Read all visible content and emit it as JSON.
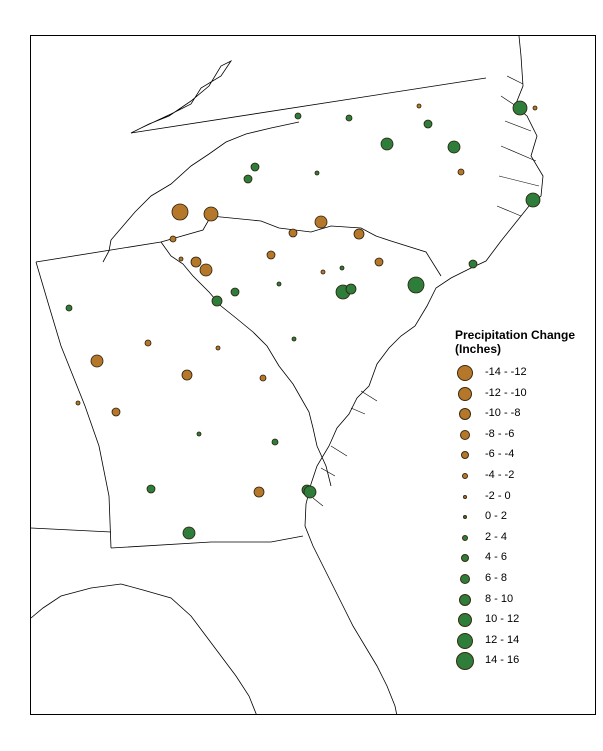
{
  "legend": {
    "title_line1": "Precipitation Change",
    "title_line2": "(Inches)",
    "classes": [
      {
        "label": "-14 - -12",
        "color": "#b5782a",
        "size": 16
      },
      {
        "label": "-12 - -10",
        "color": "#b5782a",
        "size": 14
      },
      {
        "label": "-10 - -8",
        "color": "#b5782a",
        "size": 12
      },
      {
        "label": "-8 - -6",
        "color": "#b5782a",
        "size": 10
      },
      {
        "label": "-6 - -4",
        "color": "#b5782a",
        "size": 8
      },
      {
        "label": "-4 - -2",
        "color": "#b5782a",
        "size": 6
      },
      {
        "label": "-2 - 0",
        "color": "#b5782a",
        "size": 4
      },
      {
        "label": "0 - 2",
        "color": "#2e7d3a",
        "size": 4
      },
      {
        "label": "2 - 4",
        "color": "#2e7d3a",
        "size": 6
      },
      {
        "label": "4 - 6",
        "color": "#2e7d3a",
        "size": 8
      },
      {
        "label": "6 - 8",
        "color": "#2e7d3a",
        "size": 10
      },
      {
        "label": "8 - 10",
        "color": "#2e7d3a",
        "size": 12
      },
      {
        "label": "10 - 12",
        "color": "#2e7d3a",
        "size": 14
      },
      {
        "label": "12 - 14",
        "color": "#2e7d3a",
        "size": 16
      },
      {
        "label": "14 - 16",
        "color": "#2e7d3a",
        "size": 18
      }
    ]
  },
  "colors": {
    "decrease": "#b5782a",
    "increase": "#2e7d3a",
    "outline": "#000000"
  },
  "stations": [
    {
      "class": 8
    },
    {
      "class": 8
    },
    {
      "class": 6
    },
    {
      "class": 9
    },
    {
      "class": 11
    },
    {
      "class": 12
    },
    {
      "class": 11
    },
    {
      "class": 9
    },
    {
      "class": 9
    },
    {
      "class": 7
    },
    {
      "class": 5
    },
    {
      "class": 0
    },
    {
      "class": 1
    },
    {
      "class": 2
    },
    {
      "class": 3
    },
    {
      "class": 4
    },
    {
      "class": 5
    },
    {
      "class": 6
    },
    {
      "class": 3
    },
    {
      "class": 2
    },
    {
      "class": 4
    },
    {
      "class": 6
    },
    {
      "class": 7
    },
    {
      "class": 9
    },
    {
      "class": 10
    },
    {
      "class": 12
    },
    {
      "class": 13
    },
    {
      "class": 9
    },
    {
      "class": 8
    },
    {
      "class": 5
    },
    {
      "class": 6
    },
    {
      "class": 7
    },
    {
      "class": 2
    },
    {
      "class": 3
    },
    {
      "class": 5
    },
    {
      "class": 4
    },
    {
      "class": 6
    },
    {
      "class": 7
    },
    {
      "class": 8
    },
    {
      "class": 9
    },
    {
      "class": 3
    },
    {
      "class": 10
    },
    {
      "class": 11
    },
    {
      "class": 12
    },
    {
      "class": 6
    },
    {
      "class": 7
    },
    {
      "class": 4
    },
    {
      "class": 10
    },
    {
      "class": 11
    }
  ]
}
